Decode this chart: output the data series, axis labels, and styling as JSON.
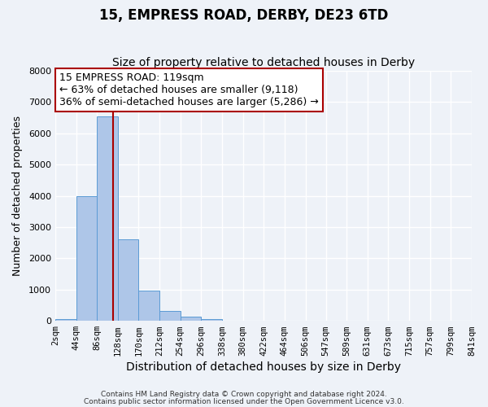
{
  "title": "15, EMPRESS ROAD, DERBY, DE23 6TD",
  "subtitle": "Size of property relative to detached houses in Derby",
  "xlabel": "Distribution of detached houses by size in Derby",
  "ylabel": "Number of detached properties",
  "bin_edges": [
    2,
    44,
    86,
    128,
    170,
    212,
    254,
    296,
    338,
    380,
    422,
    464,
    506,
    547,
    589,
    631,
    673,
    715,
    757,
    799,
    841
  ],
  "bin_labels": [
    "2sqm",
    "44sqm",
    "86sqm",
    "128sqm",
    "170sqm",
    "212sqm",
    "254sqm",
    "296sqm",
    "338sqm",
    "380sqm",
    "422sqm",
    "464sqm",
    "506sqm",
    "547sqm",
    "589sqm",
    "631sqm",
    "673sqm",
    "715sqm",
    "757sqm",
    "799sqm",
    "841sqm"
  ],
  "bar_heights": [
    60,
    4000,
    6550,
    2600,
    960,
    330,
    130,
    60,
    0,
    0,
    0,
    0,
    0,
    0,
    0,
    0,
    0,
    0,
    0,
    0
  ],
  "bar_color": "#aec6e8",
  "bar_edge_color": "#5b9bd5",
  "vertical_line_x": 119,
  "vertical_line_color": "#aa0000",
  "ylim": [
    0,
    8000
  ],
  "annotation_line1": "15 EMPRESS ROAD: 119sqm",
  "annotation_line2": "← 63% of detached houses are smaller (9,118)",
  "annotation_line3": "36% of semi-detached houses are larger (5,286) →",
  "annotation_fontsize": 9,
  "title_fontsize": 12,
  "subtitle_fontsize": 10,
  "xlabel_fontsize": 10,
  "ylabel_fontsize": 9,
  "footer_line1": "Contains HM Land Registry data © Crown copyright and database right 2024.",
  "footer_line2": "Contains public sector information licensed under the Open Government Licence v3.0.",
  "background_color": "#eef2f8",
  "grid_color": "#ffffff",
  "tick_label_fontsize": 7.5
}
